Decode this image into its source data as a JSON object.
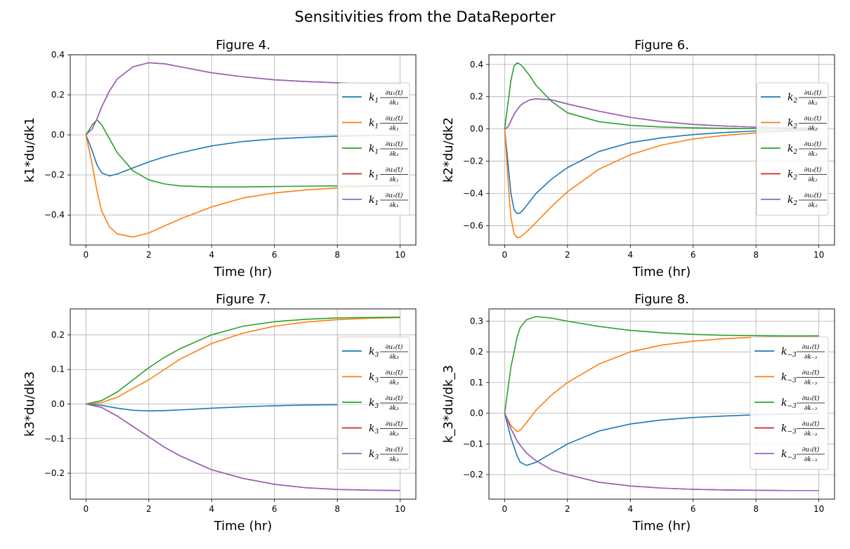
{
  "suptitle": "Sensitivities from the DataReporter",
  "colors": [
    "#1f77b4",
    "#ff7f0e",
    "#2ca02c",
    "#d62728",
    "#9467bd"
  ],
  "chart_data": [
    {
      "type": "line",
      "title": "Figure 4.",
      "xlabel": "Time (hr)",
      "ylabel": "k1*du/dk1",
      "xlim": [
        -0.5,
        10.5
      ],
      "ylim": [
        -0.55,
        0.4
      ],
      "xticks": [
        "0",
        "2",
        "4",
        "6",
        "8",
        "10"
      ],
      "yticks": [
        "−0.4",
        "−0.2",
        "0.0",
        "0.2",
        "0.4"
      ],
      "grid": true,
      "legend_position": "center-right",
      "legend": {
        "k": "k",
        "k_sub": "1",
        "den_sub": "1"
      },
      "x": [
        0,
        0.2,
        0.35,
        0.5,
        0.75,
        1,
        1.5,
        2,
        2.5,
        3,
        4,
        5,
        6,
        7,
        8,
        9,
        10
      ],
      "series": [
        {
          "values": [
            0,
            -0.08,
            -0.15,
            -0.19,
            -0.205,
            -0.195,
            -0.165,
            -0.135,
            -0.11,
            -0.09,
            -0.055,
            -0.033,
            -0.02,
            -0.012,
            -0.007,
            -0.004,
            -0.002
          ]
        },
        {
          "values": [
            0,
            -0.15,
            -0.28,
            -0.38,
            -0.46,
            -0.495,
            -0.51,
            -0.49,
            -0.455,
            -0.42,
            -0.36,
            -0.315,
            -0.29,
            -0.275,
            -0.265,
            -0.258,
            -0.255
          ]
        },
        {
          "values": [
            0,
            0.05,
            0.075,
            0.05,
            -0.02,
            -0.09,
            -0.18,
            -0.225,
            -0.245,
            -0.255,
            -0.26,
            -0.26,
            -0.258,
            -0.256,
            -0.255,
            -0.254,
            -0.253
          ]
        },
        {
          "values": [
            0,
            0.03,
            0.08,
            0.14,
            0.22,
            0.28,
            0.34,
            0.36,
            0.355,
            0.34,
            0.31,
            0.29,
            0.275,
            0.266,
            0.26,
            0.257,
            0.255
          ]
        },
        {
          "values": [
            0,
            0.03,
            0.08,
            0.14,
            0.22,
            0.28,
            0.34,
            0.36,
            0.355,
            0.34,
            0.31,
            0.29,
            0.275,
            0.266,
            0.26,
            0.257,
            0.255
          ]
        }
      ]
    },
    {
      "type": "line",
      "title": "Figure 6.",
      "xlabel": "Time (hr)",
      "ylabel": "k2*du/dk2",
      "xlim": [
        -0.5,
        10.5
      ],
      "ylim": [
        -0.72,
        0.46
      ],
      "xticks": [
        "0",
        "2",
        "4",
        "6",
        "8",
        "10"
      ],
      "yticks": [
        "−0.6",
        "−0.4",
        "−0.2",
        "0.0",
        "0.2",
        "0.4"
      ],
      "grid": true,
      "legend_position": "center-right",
      "legend": {
        "k": "k",
        "k_sub": "2",
        "den_sub": "2"
      },
      "x": [
        0,
        0.1,
        0.2,
        0.3,
        0.4,
        0.5,
        0.6,
        0.8,
        1,
        1.5,
        2,
        3,
        4,
        5,
        6,
        7,
        8,
        9,
        10
      ],
      "series": [
        {
          "values": [
            0,
            -0.2,
            -0.4,
            -0.5,
            -0.525,
            -0.52,
            -0.5,
            -0.45,
            -0.4,
            -0.31,
            -0.24,
            -0.14,
            -0.085,
            -0.055,
            -0.035,
            -0.022,
            -0.013,
            -0.008,
            -0.005
          ]
        },
        {
          "values": [
            0,
            -0.3,
            -0.55,
            -0.65,
            -0.675,
            -0.67,
            -0.655,
            -0.62,
            -0.58,
            -0.48,
            -0.39,
            -0.25,
            -0.16,
            -0.1,
            -0.062,
            -0.04,
            -0.025,
            -0.015,
            -0.01
          ]
        },
        {
          "values": [
            0,
            0.15,
            0.3,
            0.39,
            0.41,
            0.4,
            0.38,
            0.33,
            0.27,
            0.17,
            0.1,
            0.045,
            0.022,
            0.012,
            0.007,
            0.004,
            0.002,
            0.001,
            0
          ]
        },
        {
          "values": [
            0,
            0.01,
            0.05,
            0.09,
            0.12,
            0.145,
            0.16,
            0.18,
            0.187,
            0.18,
            0.155,
            0.11,
            0.072,
            0.045,
            0.028,
            0.018,
            0.011,
            0.007,
            0.004
          ]
        },
        {
          "values": [
            0,
            0.01,
            0.05,
            0.09,
            0.12,
            0.145,
            0.16,
            0.18,
            0.187,
            0.18,
            0.155,
            0.11,
            0.072,
            0.045,
            0.028,
            0.018,
            0.011,
            0.007,
            0.004
          ]
        }
      ]
    },
    {
      "type": "line",
      "title": "Figure 7.",
      "xlabel": "Time (hr)",
      "ylabel": "k3*du/dk3",
      "xlim": [
        -0.5,
        10.5
      ],
      "ylim": [
        -0.275,
        0.275
      ],
      "xticks": [
        "0",
        "2",
        "4",
        "6",
        "8",
        "10"
      ],
      "yticks": [
        "−0.2",
        "−0.1",
        "0.0",
        "0.1",
        "0.2"
      ],
      "grid": true,
      "legend_position": "center-right",
      "legend": {
        "k": "k",
        "k_sub": "3",
        "den_sub": "3"
      },
      "x": [
        0,
        0.5,
        1,
        1.5,
        2,
        2.5,
        3,
        4,
        5,
        6,
        7,
        8,
        9,
        10
      ],
      "series": [
        {
          "values": [
            0,
            -0.004,
            -0.012,
            -0.018,
            -0.02,
            -0.019,
            -0.017,
            -0.012,
            -0.008,
            -0.005,
            -0.003,
            -0.002,
            -0.001,
            0
          ]
        },
        {
          "values": [
            0,
            0.004,
            0.02,
            0.045,
            0.07,
            0.1,
            0.13,
            0.175,
            0.205,
            0.225,
            0.237,
            0.244,
            0.248,
            0.25
          ]
        },
        {
          "values": [
            0,
            0.01,
            0.035,
            0.07,
            0.105,
            0.135,
            0.16,
            0.2,
            0.225,
            0.238,
            0.245,
            0.249,
            0.25,
            0.251
          ]
        },
        {
          "values": [
            0,
            -0.01,
            -0.035,
            -0.065,
            -0.095,
            -0.125,
            -0.15,
            -0.19,
            -0.215,
            -0.232,
            -0.242,
            -0.247,
            -0.249,
            -0.25
          ]
        },
        {
          "values": [
            0,
            -0.01,
            -0.035,
            -0.065,
            -0.095,
            -0.125,
            -0.15,
            -0.19,
            -0.215,
            -0.232,
            -0.242,
            -0.247,
            -0.249,
            -0.25
          ]
        }
      ]
    },
    {
      "type": "line",
      "title": "Figure 8.",
      "xlabel": "Time (hr)",
      "ylabel": "k_3*du/dk_3",
      "xlim": [
        -0.5,
        10.5
      ],
      "ylim": [
        -0.28,
        0.34
      ],
      "xticks": [
        "0",
        "2",
        "4",
        "6",
        "8",
        "10"
      ],
      "yticks": [
        "−0.2",
        "−0.1",
        "0.0",
        "0.1",
        "0.2",
        "0.3"
      ],
      "grid": true,
      "legend_position": "center-right",
      "legend": {
        "k": "k",
        "k_sub": "−3",
        "den_sub": "−3"
      },
      "x": [
        0,
        0.2,
        0.4,
        0.5,
        0.7,
        1,
        1.5,
        2,
        3,
        4,
        5,
        6,
        7,
        8,
        9,
        10
      ],
      "series": [
        {
          "values": [
            0,
            -0.08,
            -0.14,
            -0.16,
            -0.17,
            -0.16,
            -0.13,
            -0.1,
            -0.058,
            -0.035,
            -0.022,
            -0.014,
            -0.009,
            -0.005,
            -0.003,
            -0.001
          ]
        },
        {
          "values": [
            0,
            -0.04,
            -0.06,
            -0.055,
            -0.03,
            0.01,
            0.06,
            0.1,
            0.16,
            0.2,
            0.222,
            0.235,
            0.243,
            0.248,
            0.25,
            0.252
          ]
        },
        {
          "values": [
            0,
            0.15,
            0.25,
            0.28,
            0.305,
            0.315,
            0.31,
            0.3,
            0.283,
            0.27,
            0.262,
            0.257,
            0.254,
            0.253,
            0.252,
            0.252
          ]
        },
        {
          "values": [
            0,
            -0.05,
            -0.09,
            -0.105,
            -0.13,
            -0.155,
            -0.185,
            -0.2,
            -0.225,
            -0.237,
            -0.244,
            -0.248,
            -0.25,
            -0.251,
            -0.252,
            -0.252
          ]
        },
        {
          "values": [
            0,
            -0.05,
            -0.09,
            -0.105,
            -0.13,
            -0.155,
            -0.185,
            -0.2,
            -0.225,
            -0.237,
            -0.244,
            -0.248,
            -0.25,
            -0.251,
            -0.252,
            -0.252
          ]
        }
      ]
    }
  ]
}
